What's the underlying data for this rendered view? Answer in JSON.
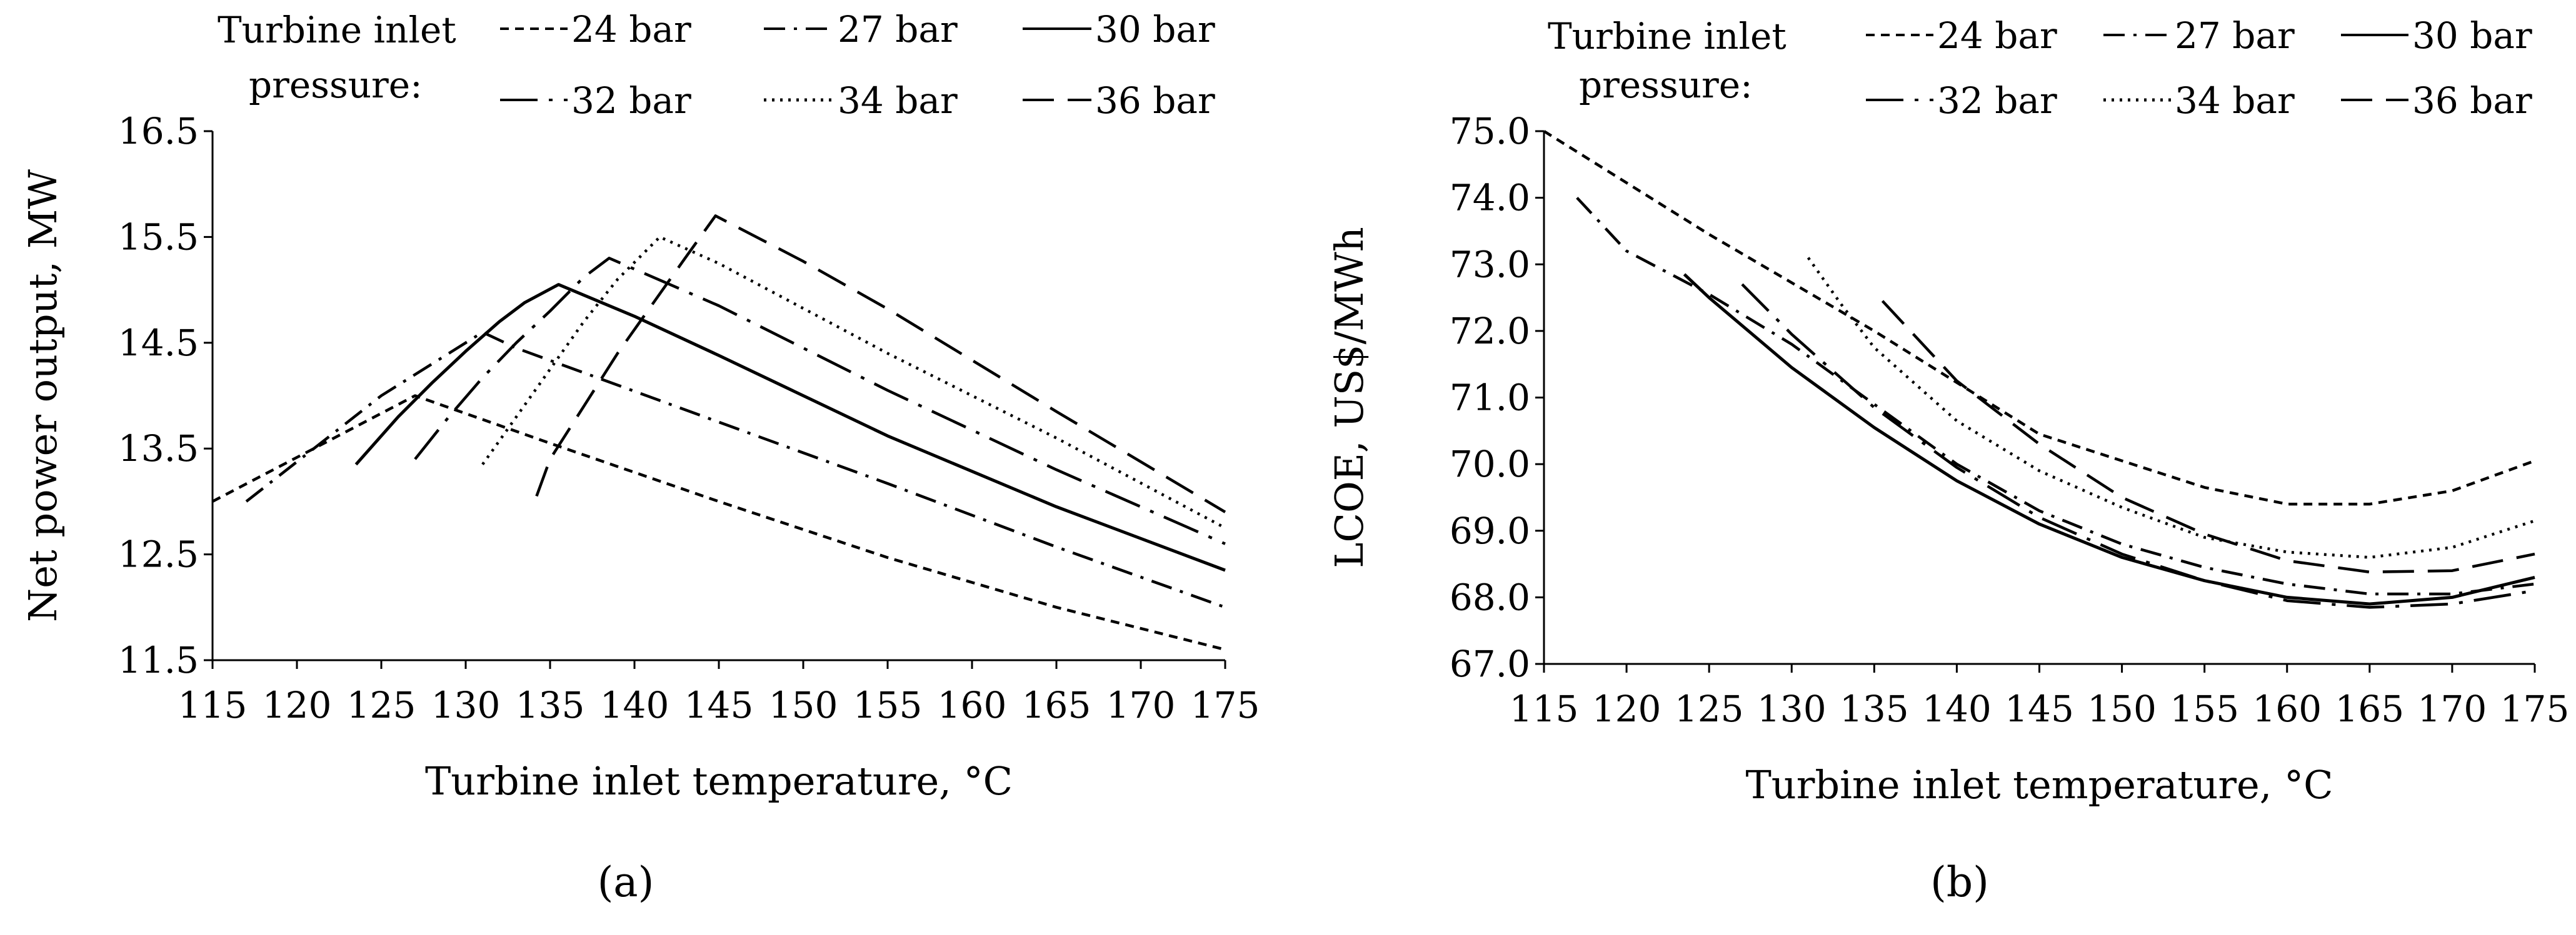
{
  "chart_data": [
    {
      "panel_label": "(a)",
      "type": "line",
      "title": "",
      "xlabel": "Turbine inlet temperature, °C",
      "ylabel": "Net power output, MW",
      "xlim": [
        115,
        175
      ],
      "ylim": [
        11.5,
        16.5
      ],
      "xticks": [
        "115",
        "120",
        "125",
        "130",
        "135",
        "140",
        "145",
        "150",
        "155",
        "160",
        "165",
        "170",
        "175"
      ],
      "yticks": [
        "11.5",
        "12.5",
        "13.5",
        "14.5",
        "15.5",
        "16.5"
      ],
      "grid": false,
      "legend": {
        "title_line1": "Turbine inlet",
        "title_line2": "pressure:",
        "placement": "top"
      },
      "series": [
        {
          "name": "24 bar",
          "style": "short-dash",
          "x": [
            115,
            127,
            135,
            145,
            155,
            165,
            175
          ],
          "y": [
            13.0,
            14.0,
            13.55,
            13.0,
            12.47,
            12.0,
            11.6
          ]
        },
        {
          "name": "27 bar",
          "style": "dash-dot",
          "x": [
            117,
            125,
            131,
            133,
            145,
            155,
            165,
            175
          ],
          "y": [
            13.0,
            14.0,
            14.6,
            14.45,
            13.75,
            13.17,
            12.57,
            12.0
          ]
        },
        {
          "name": "30 bar",
          "style": "solid",
          "x": [
            123.5,
            126,
            128,
            130,
            132,
            133.5,
            135.5,
            140,
            145,
            155,
            165,
            175
          ],
          "y": [
            13.35,
            13.8,
            14.12,
            14.42,
            14.7,
            14.88,
            15.05,
            14.75,
            14.38,
            13.62,
            12.95,
            12.35
          ]
        },
        {
          "name": "32 bar",
          "style": "long-dash-dot",
          "x": [
            127,
            129,
            131,
            133,
            135,
            137,
            138.5,
            145,
            155,
            165,
            175
          ],
          "y": [
            13.4,
            13.8,
            14.17,
            14.5,
            14.8,
            15.12,
            15.3,
            14.85,
            14.05,
            13.3,
            12.6
          ]
        },
        {
          "name": "34 bar",
          "style": "dotted",
          "x": [
            131,
            133,
            135,
            137,
            139,
            141.5,
            145,
            155,
            165,
            175
          ],
          "y": [
            13.35,
            13.8,
            14.25,
            14.7,
            15.1,
            15.5,
            15.25,
            14.4,
            13.6,
            12.75
          ]
        },
        {
          "name": "36 bar",
          "style": "long-dash",
          "x": [
            134.2,
            135,
            137,
            139,
            141,
            143,
            144.8,
            150,
            155,
            165,
            175
          ],
          "y": [
            13.05,
            13.4,
            13.9,
            14.4,
            14.85,
            15.3,
            15.7,
            15.27,
            14.82,
            13.85,
            12.9
          ]
        }
      ]
    },
    {
      "panel_label": "(b)",
      "type": "line",
      "title": "",
      "xlabel": "Turbine inlet temperature, °C",
      "ylabel": "LCOE, US$/MWh",
      "xlim": [
        115,
        175
      ],
      "ylim": [
        67.0,
        75.0
      ],
      "xticks": [
        "115",
        "120",
        "125",
        "130",
        "135",
        "140",
        "145",
        "150",
        "155",
        "160",
        "165",
        "170",
        "175"
      ],
      "yticks": [
        "67.0",
        "68.0",
        "69.0",
        "70.0",
        "71.0",
        "72.0",
        "73.0",
        "74.0",
        "75.0"
      ],
      "grid": false,
      "legend": {
        "title_line1": "Turbine inlet",
        "title_line2": "pressure:",
        "placement": "top"
      },
      "series": [
        {
          "name": "24 bar",
          "style": "short-dash",
          "x": [
            115,
            125,
            135,
            145,
            155,
            160,
            165,
            170,
            175
          ],
          "y": [
            75.0,
            73.45,
            72.0,
            70.45,
            69.65,
            69.4,
            69.4,
            69.6,
            70.05
          ]
        },
        {
          "name": "27 bar",
          "style": "dash-dot",
          "x": [
            117,
            120,
            125,
            130,
            135,
            140,
            145,
            150,
            155,
            160,
            165,
            170,
            175
          ],
          "y": [
            74.0,
            73.2,
            72.55,
            71.8,
            70.9,
            70.0,
            69.3,
            68.8,
            68.45,
            68.2,
            68.05,
            68.05,
            68.2
          ]
        },
        {
          "name": "30 bar",
          "style": "solid",
          "x": [
            123.5,
            125,
            130,
            135,
            140,
            145,
            150,
            155,
            160,
            165,
            170,
            175
          ],
          "y": [
            72.85,
            72.5,
            71.45,
            70.55,
            69.75,
            69.1,
            68.6,
            68.25,
            68.0,
            67.9,
            68.0,
            68.3
          ]
        },
        {
          "name": "32 bar",
          "style": "long-dash-dot",
          "x": [
            127,
            130,
            135,
            140,
            145,
            150,
            155,
            160,
            165,
            170,
            175
          ],
          "y": [
            72.7,
            71.95,
            70.85,
            69.95,
            69.2,
            68.65,
            68.25,
            67.95,
            67.85,
            67.9,
            68.1
          ]
        },
        {
          "name": "34 bar",
          "style": "dotted",
          "x": [
            131,
            133,
            135,
            140,
            145,
            150,
            155,
            160,
            165,
            170,
            175
          ],
          "y": [
            73.1,
            72.4,
            71.75,
            70.65,
            69.9,
            69.35,
            68.9,
            68.68,
            68.6,
            68.75,
            69.15
          ]
        },
        {
          "name": "36 bar",
          "style": "long-dash",
          "x": [
            135.5,
            140,
            145,
            150,
            155,
            160,
            165,
            170,
            175
          ],
          "y": [
            72.45,
            71.25,
            70.3,
            69.5,
            68.95,
            68.55,
            68.38,
            68.4,
            68.65
          ]
        }
      ]
    }
  ]
}
